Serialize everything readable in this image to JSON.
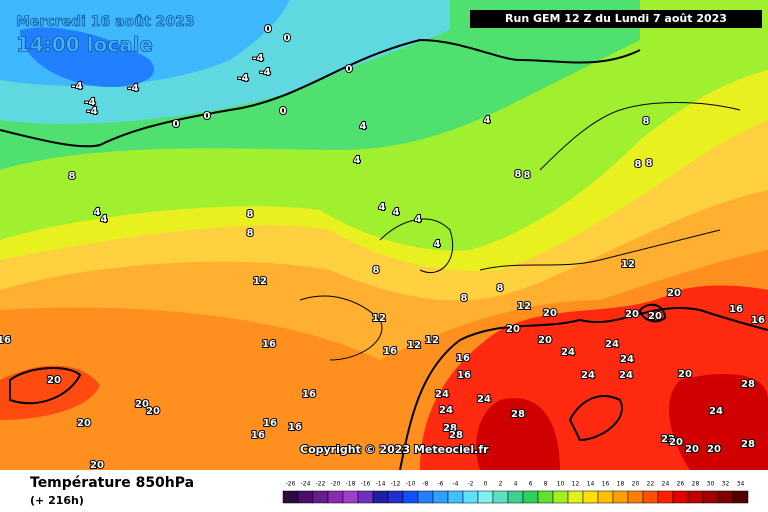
{
  "header": {
    "date": "Mercredi 16 août 2023",
    "time": "14:00 locale",
    "run": "Run GEM 12 Z du Lundi 7 août 2023"
  },
  "copyright": "Copyright © 2023 Meteociel.fr",
  "footer": {
    "title": "Température 850hPa",
    "lead": "(+ 216h)"
  },
  "scale": {
    "ticks": [
      -26,
      -24,
      -22,
      -20,
      -18,
      -16,
      -14,
      -12,
      -10,
      -8,
      -6,
      -4,
      -2,
      0,
      2,
      4,
      6,
      8,
      10,
      12,
      14,
      16,
      18,
      20,
      22,
      24,
      26,
      28,
      30,
      32,
      34
    ],
    "colors": [
      "#2d0a3e",
      "#4b0f6b",
      "#6a1a8f",
      "#8a2ab0",
      "#a040c8",
      "#7030c0",
      "#2020a0",
      "#2030d0",
      "#1050ff",
      "#2080ff",
      "#30a0ff",
      "#40c0ff",
      "#60e0ff",
      "#80f0f0",
      "#60e0c0",
      "#40d090",
      "#30d060",
      "#60e030",
      "#a0f020",
      "#e0f020",
      "#ffe000",
      "#ffc000",
      "#ffa000",
      "#ff8000",
      "#ff5000",
      "#ff2000",
      "#e00000",
      "#c00000",
      "#a00000",
      "#800000",
      "#500000"
    ]
  },
  "map": {
    "contour_labels": [
      -4,
      -4,
      -4,
      -4,
      -4,
      -4,
      -4,
      0,
      0,
      0,
      0,
      0,
      0,
      4,
      4,
      4,
      4,
      4,
      4,
      4,
      4,
      4,
      8,
      8,
      8,
      8,
      8,
      8,
      8,
      8,
      8,
      8,
      8,
      12,
      12,
      12,
      12,
      12,
      12,
      16,
      16,
      16,
      16,
      16,
      16,
      16,
      16,
      16,
      16,
      16,
      20,
      20,
      20,
      20,
      20,
      20,
      20,
      20,
      20,
      20,
      20,
      20,
      20,
      20,
      24,
      24,
      24,
      24,
      24,
      24,
      24,
      24,
      24,
      28,
      28,
      28,
      28,
      28,
      22,
      20
    ]
  }
}
